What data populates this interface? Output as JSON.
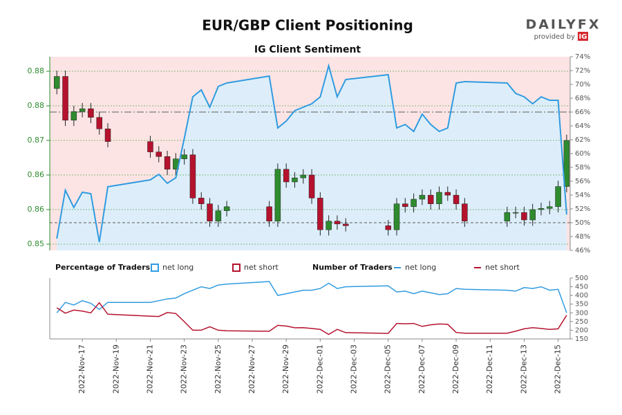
{
  "chart_data": [
    {
      "type": "candlestick",
      "title": "EUR/GBP Client Positioning",
      "subtitle": "IG Client Sentiment",
      "logo": "DAILYFX",
      "logo_note": "provided by",
      "logo_brand": "IG",
      "legend_title": "Percentage of Traders",
      "x": [
        "2022-11-15T12:00",
        "2022-11-16T00:00",
        "2022-11-16T12:00",
        "2022-11-17T00:00",
        "2022-11-17T12:00",
        "2022-11-18T00:00",
        "2022-11-18T12:00",
        "2022-11-21T00:00",
        "2022-11-21T12:00",
        "2022-11-22T00:00",
        "2022-11-22T12:00",
        "2022-11-23T00:00",
        "2022-11-23T12:00",
        "2022-11-24T00:00",
        "2022-11-24T12:00",
        "2022-11-25T00:00",
        "2022-11-25T12:00",
        "2022-11-28T00:00",
        "2022-11-28T12:00",
        "2022-11-29T00:00",
        "2022-11-29T12:00",
        "2022-11-30T00:00",
        "2022-11-30T12:00",
        "2022-12-01T00:00",
        "2022-12-01T12:00",
        "2022-12-02T00:00",
        "2022-12-02T12:00",
        "2022-12-05T00:00",
        "2022-12-05T12:00",
        "2022-12-06T00:00",
        "2022-12-06T12:00",
        "2022-12-07T00:00",
        "2022-12-07T12:00",
        "2022-12-08T00:00",
        "2022-12-08T12:00",
        "2022-12-09T00:00",
        "2022-12-09T12:00",
        "2022-12-12T00:00",
        "2022-12-12T12:00",
        "2022-12-13T00:00",
        "2022-12-13T12:00",
        "2022-12-14T00:00",
        "2022-12-14T12:00",
        "2022-12-15T00:00",
        "2022-12-15T12:00"
      ],
      "xlim": [
        "2022-11-15T02:00",
        "2022-12-15T17:00"
      ],
      "xticks": [
        {
          "value": "2022-11-17",
          "label": "2022-Nov-17"
        },
        {
          "value": "2022-11-19",
          "label": "2022-Nov-19"
        },
        {
          "value": "2022-11-21",
          "label": "2022-Nov-21"
        },
        {
          "value": "2022-11-23",
          "label": "2022-Nov-23"
        },
        {
          "value": "2022-11-25",
          "label": "2022-Nov-25"
        },
        {
          "value": "2022-11-27",
          "label": "2022-Nov-27"
        },
        {
          "value": "2022-11-29",
          "label": "2022-Nov-29"
        },
        {
          "value": "2022-12-01",
          "label": "2022-Dec-01"
        },
        {
          "value": "2022-12-03",
          "label": "2022-Dec-03"
        },
        {
          "value": "2022-12-05",
          "label": "2022-Dec-05"
        },
        {
          "value": "2022-12-07",
          "label": "2022-Dec-07"
        },
        {
          "value": "2022-12-09",
          "label": "2022-Dec-09"
        },
        {
          "value": "2022-12-11",
          "label": "2022-Dec-11"
        },
        {
          "value": "2022-12-13",
          "label": "2022-Dec-13"
        },
        {
          "value": "2022-12-15",
          "label": "2022-Dec-15"
        }
      ],
      "open": [
        0.879,
        0.8811,
        0.8735,
        0.875,
        0.8755,
        0.874,
        0.872,
        0.8698,
        0.868,
        0.8672,
        0.865,
        0.8668,
        0.8675,
        0.86,
        0.859,
        0.856,
        0.8578,
        0.8585,
        0.856,
        0.865,
        0.8628,
        0.8635,
        0.864,
        0.86,
        0.8545,
        0.856,
        0.8555,
        0.8552,
        0.8545,
        0.859,
        0.8585,
        0.8598,
        0.8605,
        0.859,
        0.861,
        0.8605,
        0.859,
        0.856,
        0.8575,
        0.8575,
        0.8562,
        0.858,
        0.8582,
        0.8585,
        0.862
      ],
      "high": [
        0.8821,
        0.8821,
        0.876,
        0.8765,
        0.8765,
        0.875,
        0.873,
        0.8708,
        0.869,
        0.8682,
        0.8678,
        0.8685,
        0.8685,
        0.861,
        0.86,
        0.8588,
        0.8595,
        0.8595,
        0.866,
        0.866,
        0.8645,
        0.865,
        0.865,
        0.861,
        0.857,
        0.857,
        0.8565,
        0.8562,
        0.86,
        0.86,
        0.8608,
        0.8615,
        0.8615,
        0.862,
        0.862,
        0.8615,
        0.86,
        0.8585,
        0.8585,
        0.8585,
        0.859,
        0.8592,
        0.8595,
        0.863,
        0.871
      ],
      "low": [
        0.878,
        0.8725,
        0.8725,
        0.874,
        0.873,
        0.871,
        0.8688,
        0.867,
        0.8662,
        0.864,
        0.864,
        0.8658,
        0.859,
        0.858,
        0.855,
        0.855,
        0.8568,
        0.855,
        0.855,
        0.8618,
        0.8618,
        0.8625,
        0.859,
        0.8535,
        0.8535,
        0.8545,
        0.8542,
        0.8535,
        0.8535,
        0.8575,
        0.8575,
        0.8588,
        0.858,
        0.858,
        0.8595,
        0.858,
        0.855,
        0.855,
        0.8565,
        0.8552,
        0.8552,
        0.857,
        0.8572,
        0.8575,
        0.861
      ],
      "close": [
        0.8811,
        0.8735,
        0.875,
        0.8755,
        0.874,
        0.872,
        0.8698,
        0.868,
        0.8672,
        0.865,
        0.8668,
        0.8675,
        0.86,
        0.859,
        0.856,
        0.8578,
        0.8585,
        0.856,
        0.865,
        0.8628,
        0.8635,
        0.864,
        0.86,
        0.8545,
        0.856,
        0.8555,
        0.8552,
        0.8545,
        0.859,
        0.8585,
        0.8598,
        0.8605,
        0.859,
        0.861,
        0.8605,
        0.859,
        0.856,
        0.8575,
        0.8575,
        0.8562,
        0.858,
        0.8582,
        0.8585,
        0.862,
        0.87
      ],
      "up_color": "#2e8b2e",
      "down_color": "#b5122e",
      "ylim": [
        0.85092,
        0.88452
      ],
      "yticks": [
        {
          "value": 0.852,
          "label": "0.85"
        },
        {
          "value": 0.858,
          "label": "0.86"
        },
        {
          "value": 0.864,
          "label": "0.86"
        },
        {
          "value": 0.87,
          "label": "0.87"
        },
        {
          "value": 0.876,
          "label": "0.88"
        },
        {
          "value": 0.882,
          "label": "0.88"
        }
      ],
      "grid": true,
      "y2lim": [
        46,
        74
      ],
      "y2ticks": [
        {
          "value": 46,
          "label": "46%"
        },
        {
          "value": 48,
          "label": "48%"
        },
        {
          "value": 50,
          "label": "50%"
        },
        {
          "value": 52,
          "label": "52%"
        },
        {
          "value": 54,
          "label": "54%"
        },
        {
          "value": 56,
          "label": "56%"
        },
        {
          "value": 58,
          "label": "58%"
        },
        {
          "value": 60,
          "label": "60%"
        },
        {
          "value": 62,
          "label": "62%"
        },
        {
          "value": 64,
          "label": "64%"
        },
        {
          "value": 66,
          "label": "66%"
        },
        {
          "value": 68,
          "label": "68%"
        },
        {
          "value": 70,
          "label": "70%"
        },
        {
          "value": 72,
          "label": "72%"
        },
        {
          "value": 74,
          "label": "74%"
        }
      ],
      "reference_lines": [
        50,
        66
      ],
      "series": [
        {
          "name": "net long",
          "color": "#2f9be0",
          "fill": "#ddeefa",
          "axis": "y2",
          "values": [
            47.7,
            54.7,
            52.2,
            54.4,
            54.2,
            47.2,
            55.2,
            56.2,
            57.0,
            55.7,
            56.5,
            62.2,
            68.2,
            69.2,
            66.7,
            69.7,
            70.2,
            71.2,
            63.7,
            64.7,
            66.2,
            66.7,
            67.2,
            68.2,
            72.7,
            68.2,
            70.7,
            71.4,
            63.7,
            64.2,
            63.2,
            65.7,
            64.2,
            63.2,
            63.7,
            70.2,
            70.4,
            70.2,
            68.7,
            68.2,
            67.2,
            68.2,
            67.7,
            67.7,
            51.2
          ]
        },
        {
          "name": "net short",
          "color": "#b5122e",
          "fill": "#fde4e4"
        }
      ]
    },
    {
      "type": "line",
      "legend_title": "Number of Traders",
      "ylim": [
        150,
        500
      ],
      "yticks": [
        150,
        200,
        250,
        300,
        350,
        400,
        450,
        500
      ],
      "series": [
        {
          "name": "net long",
          "color": "#2f9be0",
          "values": [
            300,
            360,
            345,
            370,
            355,
            320,
            360,
            360,
            370,
            380,
            385,
            410,
            430,
            450,
            440,
            460,
            465,
            480,
            400,
            410,
            420,
            430,
            430,
            440,
            470,
            440,
            450,
            455,
            420,
            425,
            410,
            425,
            415,
            405,
            410,
            440,
            435,
            430,
            425,
            445,
            440,
            450,
            430,
            435,
            300
          ]
        },
        {
          "name": "net short",
          "color": "#b5122e",
          "values": [
            329,
            298,
            316,
            310,
            300,
            358,
            292,
            281,
            279,
            302,
            296,
            249,
            200,
            200,
            220,
            200,
            197,
            194,
            228,
            224,
            214,
            215,
            210,
            205,
            176,
            205,
            186,
            182,
            239,
            237,
            239,
            222,
            231,
            236,
            234,
            187,
            183,
            183,
            194,
            208,
            215,
            210,
            205,
            208,
            286
          ]
        }
      ]
    }
  ]
}
